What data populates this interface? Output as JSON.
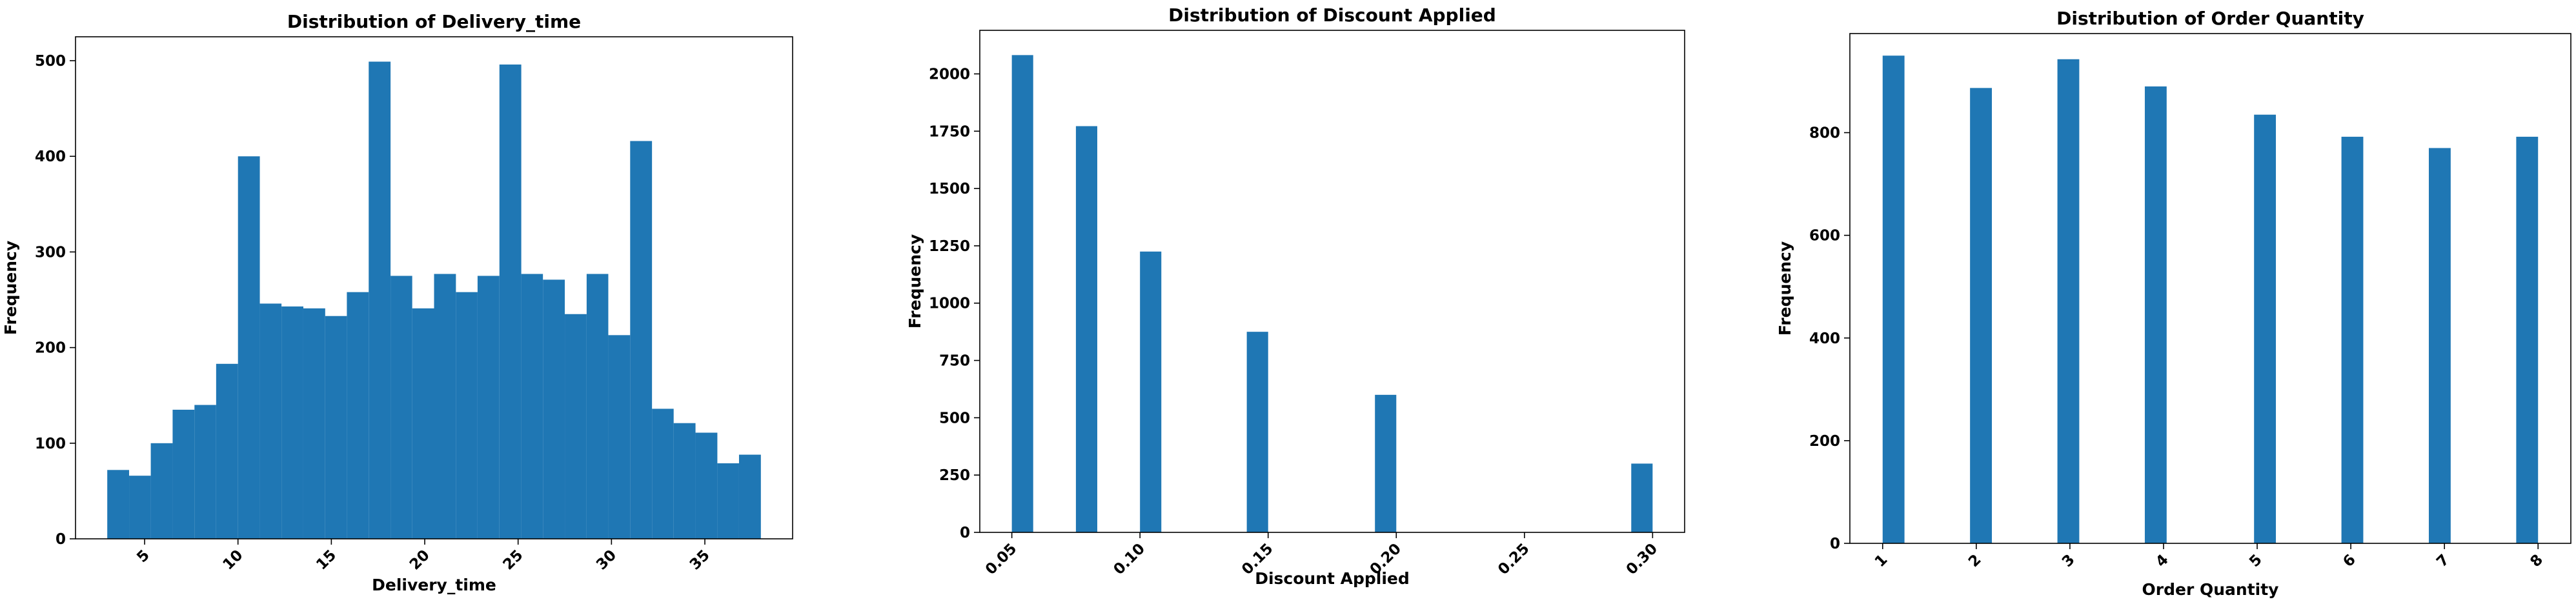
{
  "chart_data": [
    {
      "type": "bar",
      "title": "Distribution of Delivery_time",
      "xlabel": "Delivery_time",
      "ylabel": "Frequency",
      "xlim": [
        1.3,
        39.7
      ],
      "ylim": [
        0,
        525
      ],
      "xticks": [
        5,
        10,
        15,
        20,
        25,
        30,
        35
      ],
      "xtick_labels": [
        "5",
        "10",
        "15",
        "20",
        "25",
        "30",
        "35"
      ],
      "yticks": [
        0,
        100,
        200,
        300,
        400,
        500
      ],
      "ytick_labels": [
        "0",
        "100",
        "200",
        "300",
        "400",
        "500"
      ],
      "bin_edges": [
        3.0,
        4.17,
        5.33,
        6.5,
        7.67,
        8.83,
        10.0,
        11.17,
        12.33,
        13.5,
        14.67,
        15.83,
        17.0,
        18.17,
        19.33,
        20.5,
        21.67,
        22.83,
        24.0,
        25.17,
        26.33,
        27.5,
        28.67,
        29.83,
        31.0,
        32.17,
        33.33,
        34.5,
        35.67,
        36.83,
        38.0
      ],
      "values": [
        72,
        66,
        100,
        135,
        140,
        183,
        400,
        246,
        243,
        241,
        233,
        258,
        499,
        275,
        241,
        277,
        258,
        275,
        496,
        277,
        271,
        235,
        277,
        213,
        416,
        136,
        121,
        111,
        79,
        88
      ],
      "color": "#1f77b4",
      "xtick_rotation": 45,
      "grid": false
    },
    {
      "type": "bar",
      "title": "Distribution of Discount Applied",
      "xlabel": "Discount Applied",
      "ylabel": "Frequency",
      "xlim": [
        0.0375,
        0.3125
      ],
      "ylim": [
        0,
        2190
      ],
      "xticks": [
        0.05,
        0.1,
        0.15,
        0.2,
        0.25,
        0.3
      ],
      "xtick_labels": [
        "0.05",
        "0.10",
        "0.15",
        "0.20",
        "0.25",
        "0.30"
      ],
      "yticks": [
        0,
        250,
        500,
        750,
        1000,
        1250,
        1500,
        1750,
        2000
      ],
      "ytick_labels": [
        "0",
        "250",
        "500",
        "750",
        "1000",
        "1250",
        "1500",
        "1750",
        "2000"
      ],
      "bin_edges": [
        0.05,
        0.05833,
        0.06667,
        0.075,
        0.08333,
        0.09167,
        0.1,
        0.10833,
        0.11667,
        0.125,
        0.13333,
        0.14167,
        0.15,
        0.15833,
        0.16667,
        0.175,
        0.18333,
        0.19167,
        0.2,
        0.20833,
        0.21667,
        0.225,
        0.23333,
        0.24167,
        0.25,
        0.25833,
        0.26667,
        0.275,
        0.28333,
        0.29167,
        0.3
      ],
      "values": [
        2082,
        0,
        0,
        1772,
        0,
        0,
        1225,
        0,
        0,
        0,
        0,
        875,
        0,
        0,
        0,
        0,
        0,
        600,
        0,
        0,
        0,
        0,
        0,
        0,
        0,
        0,
        0,
        0,
        0,
        300
      ],
      "color": "#1f77b4",
      "xtick_rotation": 45,
      "grid": false
    },
    {
      "type": "bar",
      "title": "Distribution of Order Quantity",
      "xlabel": "Order Quantity",
      "ylabel": "Frequency",
      "xlim": [
        0.65,
        8.35
      ],
      "ylim": [
        0,
        993
      ],
      "xticks": [
        1,
        2,
        3,
        4,
        5,
        6,
        7,
        8
      ],
      "xtick_labels": [
        "1",
        "2",
        "3",
        "4",
        "5",
        "6",
        "7",
        "8"
      ],
      "yticks": [
        0,
        200,
        400,
        600,
        800
      ],
      "ytick_labels": [
        "0",
        "200",
        "400",
        "600",
        "800"
      ],
      "bin_edges": [
        1.0,
        1.2333,
        1.4667,
        1.7,
        1.9333,
        2.1667,
        2.4,
        2.6333,
        2.8667,
        3.1,
        3.3333,
        3.5667,
        3.8,
        4.0333,
        4.2667,
        4.5,
        4.7333,
        4.9667,
        5.2,
        5.4333,
        5.6667,
        5.9,
        6.1333,
        6.3667,
        6.6,
        6.8333,
        7.0667,
        7.3,
        7.5333,
        7.7667,
        8.0
      ],
      "values": [
        950,
        0,
        0,
        0,
        887,
        0,
        0,
        0,
        943,
        0,
        0,
        0,
        890,
        0,
        0,
        0,
        0,
        835,
        0,
        0,
        0,
        792,
        0,
        0,
        0,
        770,
        0,
        0,
        0,
        792
      ],
      "color": "#1f77b4",
      "xtick_rotation": 45,
      "grid": false
    }
  ]
}
